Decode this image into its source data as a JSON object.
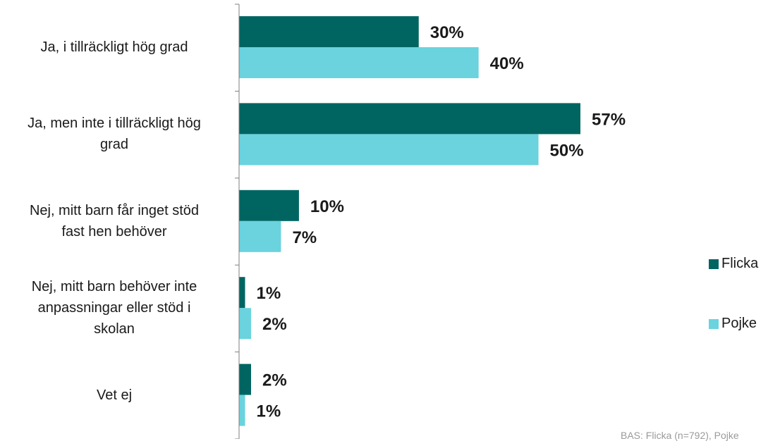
{
  "chart_data": {
    "type": "bar",
    "orientation": "horizontal",
    "categories": [
      "Ja, i tillräckligt hög grad",
      "Ja, men inte i tillräckligt hög grad",
      "Nej, mitt barn får inget stöd fast hen behöver",
      "Nej, mitt barn behöver inte anpassningar eller stöd i skolan",
      "Vet ej"
    ],
    "category_lines": [
      [
        "Ja, i tillräckligt hög grad"
      ],
      [
        "Ja, men inte i tillräckligt hög",
        "grad"
      ],
      [
        "Nej, mitt barn får inget stöd",
        "fast hen behöver"
      ],
      [
        "Nej, mitt barn behöver inte",
        "anpassningar eller stöd i",
        "skolan"
      ],
      [
        "Vet ej"
      ]
    ],
    "series": [
      {
        "name": "Flicka",
        "color": "#006561",
        "values": [
          30,
          57,
          10,
          1,
          2
        ],
        "labels": [
          "30%",
          "57%",
          "10%",
          "1%",
          "2%"
        ]
      },
      {
        "name": "Pojke",
        "color": "#6ad3de",
        "values": [
          40,
          50,
          7,
          2,
          1
        ],
        "labels": [
          "40%",
          "50%",
          "7%",
          "2%",
          "1%"
        ]
      }
    ],
    "xlim": [
      0,
      62
    ],
    "legend_position": "right",
    "footnote": "BAS: Flicka (n=792), Pojke"
  }
}
